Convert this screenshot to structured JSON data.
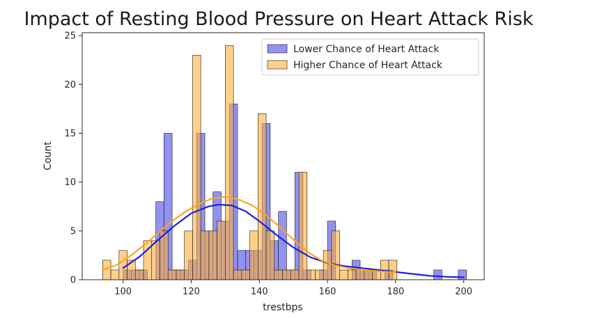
{
  "chart_data": {
    "type": "bar",
    "title": "Impact of Resting Blood Pressure on Heart Attack Risk",
    "xlabel": "trestbps",
    "ylabel": "Count",
    "xlim": [
      88,
      206
    ],
    "ylim": [
      0,
      25.3
    ],
    "xticks": [
      100,
      120,
      140,
      160,
      180,
      200
    ],
    "yticks": [
      0,
      5,
      10,
      15,
      20,
      25
    ],
    "grid": false,
    "legend_position": "top-right",
    "bin_width": 2.4,
    "series": [
      {
        "name": "Lower Chance of Heart Attack",
        "color": "#4a4ae6",
        "kde_color": "#1f1fe0",
        "bin_starts": [
          100,
          102.4,
          104.8,
          107.2,
          109.6,
          112,
          114.4,
          116.8,
          119.2,
          121.6,
          124,
          126.4,
          128.8,
          131.2,
          133.6,
          136,
          138.4,
          140.8,
          143.2,
          145.6,
          148,
          150.4,
          152.8,
          155.2,
          157.6,
          160,
          162.4,
          164.8,
          167.2,
          169.6,
          172,
          174.4,
          176.8,
          179.2,
          181.6,
          184,
          186.4,
          188.8,
          191.2,
          193.6,
          196,
          198.4
        ],
        "values": [
          1,
          1,
          1,
          0,
          8,
          15,
          1,
          1,
          2,
          15,
          5,
          9,
          6,
          18,
          3,
          3,
          3,
          16,
          4,
          7,
          1,
          11,
          1,
          0,
          1,
          6,
          0,
          0,
          2,
          1,
          1,
          0,
          1,
          0,
          0,
          0,
          0,
          0,
          1,
          0,
          0,
          1
        ],
        "kde": [
          [
            100,
            1.2
          ],
          [
            105,
            2.4
          ],
          [
            110,
            4.0
          ],
          [
            115,
            5.5
          ],
          [
            120,
            6.8
          ],
          [
            125,
            7.5
          ],
          [
            128,
            7.7
          ],
          [
            132,
            7.6
          ],
          [
            136,
            7.0
          ],
          [
            140,
            6.0
          ],
          [
            145,
            4.6
          ],
          [
            150,
            3.3
          ],
          [
            155,
            2.3
          ],
          [
            160,
            1.7
          ],
          [
            165,
            1.4
          ],
          [
            170,
            1.2
          ],
          [
            175,
            1.0
          ],
          [
            180,
            0.8
          ],
          [
            185,
            0.6
          ],
          [
            190,
            0.4
          ],
          [
            195,
            0.3
          ],
          [
            200,
            0.25
          ]
        ]
      },
      {
        "name": "Higher Chance of Heart Attack",
        "color": "#ffb13d",
        "kde_color": "#ffa31a",
        "bin_starts": [
          94,
          96.4,
          98.8,
          101.2,
          103.6,
          106,
          108.4,
          110.8,
          113.2,
          115.6,
          118,
          120.4,
          122.8,
          125.2,
          127.6,
          130,
          132.4,
          134.8,
          137.2,
          139.6,
          142,
          144.4,
          146.8,
          149.2,
          151.6,
          154,
          156.4,
          158.8,
          161.2,
          163.6,
          166,
          168.4,
          170.8,
          173.2,
          175.6,
          178
        ],
        "values": [
          2,
          1,
          3,
          2,
          1,
          4,
          4,
          5,
          1,
          1,
          5,
          23,
          5,
          5,
          6,
          24,
          1,
          1,
          5,
          17,
          5,
          1,
          1,
          1,
          11,
          1,
          1,
          3,
          5,
          1,
          1,
          1,
          1,
          1,
          2,
          2
        ],
        "kde": [
          [
            94,
            1.0
          ],
          [
            98,
            1.5
          ],
          [
            102,
            2.4
          ],
          [
            106,
            3.5
          ],
          [
            110,
            4.7
          ],
          [
            114,
            5.9
          ],
          [
            118,
            6.9
          ],
          [
            122,
            7.7
          ],
          [
            126,
            8.3
          ],
          [
            130,
            8.5
          ],
          [
            134,
            8.2
          ],
          [
            138,
            7.6
          ],
          [
            142,
            6.6
          ],
          [
            146,
            5.4
          ],
          [
            150,
            4.1
          ],
          [
            154,
            2.9
          ],
          [
            158,
            2.0
          ],
          [
            162,
            1.5
          ],
          [
            166,
            1.2
          ],
          [
            170,
            1.0
          ],
          [
            174,
            0.9
          ],
          [
            178,
            0.8
          ],
          [
            180,
            0.8
          ]
        ]
      }
    ]
  }
}
